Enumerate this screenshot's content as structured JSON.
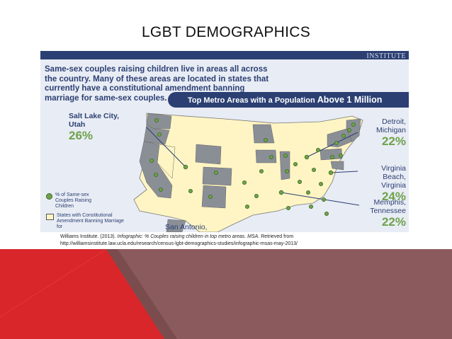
{
  "slide": {
    "title": "LGBT DEMOGRAPHICS"
  },
  "infographic": {
    "institute": "INSTITUTE",
    "intro": "Same-sex couples raising children live in areas all across the country. Many of these areas are located in states that currently have a constitutional amendment banning marriage for same-sex couples.",
    "banner_prefix": "Top Metro Areas with a Population ",
    "banner_emphasis": "Above 1 Million",
    "callouts": [
      {
        "city": "Salt Lake City, Utah",
        "pct": "26%"
      },
      {
        "city": "Detroit, Michigan",
        "pct": "22%"
      },
      {
        "city": "Virginia Beach, Virginia",
        "pct": "24%"
      },
      {
        "city": "Memphis, Tennessee",
        "pct": "22%"
      },
      {
        "city": "San Antonio,",
        "pct": ""
      }
    ],
    "legend": {
      "dot_label": "% of Same-sex Couples Raising Children",
      "box_label": "States with Constitutional Amendment Banning Marriage for"
    }
  },
  "citation": {
    "author": "Williams Institute. (2013). ",
    "title_italic": "Infographic: % Couples raising children in top metro areas. MSA.",
    "retrieved": " Retrieved from",
    "url": "http://williamsinstitute.law.ucla.edu/research/census-lgbt-demographics-studies/infographic-msas-may-2013/"
  },
  "colors": {
    "navy": "#2b3f73",
    "green": "#6ea24a",
    "ban_state": "#fff5c4",
    "other_state": "#8a8f96",
    "decor_red": "#d9262a",
    "decor_maroon": "#8a5a5c"
  }
}
